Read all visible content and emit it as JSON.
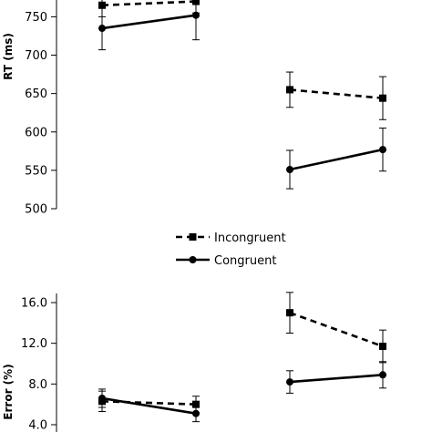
{
  "chart_data": [
    {
      "type": "line",
      "ylabel": "RT (ms)",
      "ylim": [
        500,
        750
      ],
      "yticks": [
        "500",
        "550",
        "600",
        "650",
        "700",
        "750"
      ],
      "groups": 2,
      "points_per_group": 2,
      "series": [
        {
          "name": "Incongruent",
          "style": "dashed",
          "marker": "square",
          "values": [
            [
              765,
              770
            ],
            [
              655,
              644
            ]
          ],
          "errors": [
            [
              15,
              15
            ],
            [
              23,
              28
            ]
          ]
        },
        {
          "name": "Congruent",
          "style": "solid",
          "marker": "circle",
          "values": [
            [
              735,
              752
            ],
            [
              551,
              577
            ]
          ],
          "errors": [
            [
              28,
              32
            ],
            [
              25,
              28
            ]
          ]
        }
      ]
    },
    {
      "type": "line",
      "ylabel": "Error (%)",
      "ylim": [
        4.0,
        18.0
      ],
      "yticks": [
        "4.0",
        "8.0",
        "12.0",
        "16.0"
      ],
      "groups": 2,
      "points_per_group": 2,
      "series": [
        {
          "name": "Incongruent",
          "style": "dashed",
          "marker": "square",
          "values": [
            [
              6.3,
              6.0
            ],
            [
              15.0,
              11.7
            ]
          ],
          "errors": [
            [
              1.0,
              0.8
            ],
            [
              2.0,
              1.6
            ]
          ]
        },
        {
          "name": "Congruent",
          "style": "solid",
          "marker": "circle",
          "values": [
            [
              6.6,
              5.1
            ],
            [
              8.2,
              8.9
            ]
          ],
          "errors": [
            [
              0.9,
              0.8
            ],
            [
              1.1,
              1.3
            ]
          ]
        }
      ]
    }
  ],
  "legend": {
    "items": [
      {
        "label": "Incongruent",
        "style": "dashed",
        "marker": "square"
      },
      {
        "label": "Congruent",
        "style": "solid",
        "marker": "circle"
      }
    ]
  },
  "colors": {
    "line": "#000000",
    "axis": "#000000"
  }
}
